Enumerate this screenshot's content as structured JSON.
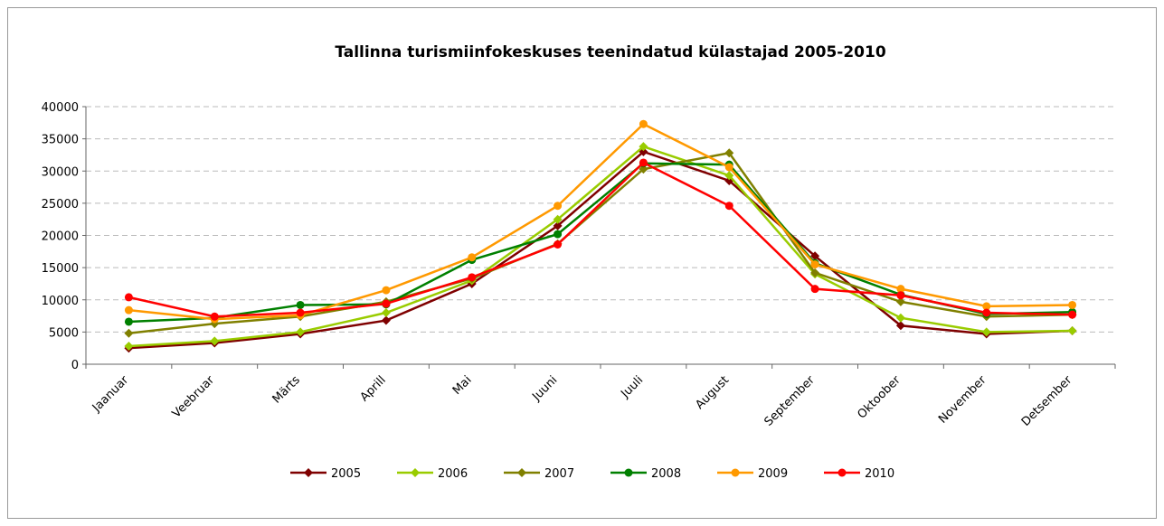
{
  "chart_data": {
    "type": "line",
    "title": "Tallinna turismiinfokeskuses teenindatud külastajad 2005-2010",
    "categories": [
      "Jaanuar",
      "Veebruar",
      "Märts",
      "Aprill",
      "Mai",
      "Juuni",
      "Juuli",
      "August",
      "September",
      "Oktoober",
      "November",
      "Detsember"
    ],
    "series": [
      {
        "name": "2005",
        "color": "#7f0000",
        "marker": "diamond",
        "values": [
          2500,
          3300,
          4700,
          6800,
          12500,
          21500,
          33000,
          28500,
          16800,
          6000,
          4700,
          5200
        ]
      },
      {
        "name": "2006",
        "color": "#99cc00",
        "marker": "diamond",
        "values": [
          2800,
          3600,
          5000,
          8000,
          13000,
          22500,
          33800,
          29300,
          14000,
          7200,
          5000,
          5200
        ]
      },
      {
        "name": "2007",
        "color": "#808000",
        "marker": "diamond",
        "values": [
          4800,
          6300,
          7400,
          9700,
          13300,
          18700,
          30300,
          32800,
          14200,
          9700,
          7400,
          7700
        ]
      },
      {
        "name": "2008",
        "color": "#008000",
        "marker": "circle",
        "values": [
          6600,
          7200,
          9200,
          9300,
          16200,
          20200,
          31200,
          31000,
          15700,
          10800,
          7800,
          8100
        ]
      },
      {
        "name": "2009",
        "color": "#ff9900",
        "marker": "circle",
        "values": [
          8400,
          7000,
          7600,
          11500,
          16600,
          24600,
          37300,
          30600,
          15500,
          11700,
          9000,
          9200
        ]
      },
      {
        "name": "2010",
        "color": "#ff0000",
        "marker": "circle",
        "values": [
          10400,
          7400,
          8000,
          9400,
          13500,
          18600,
          31300,
          24600,
          11700,
          10700,
          8000,
          7700
        ]
      }
    ],
    "ylim": [
      0,
      40000
    ],
    "yticks": [
      0,
      5000,
      10000,
      15000,
      20000,
      25000,
      30000,
      35000,
      40000
    ],
    "grid": true,
    "legend": "bottom"
  }
}
